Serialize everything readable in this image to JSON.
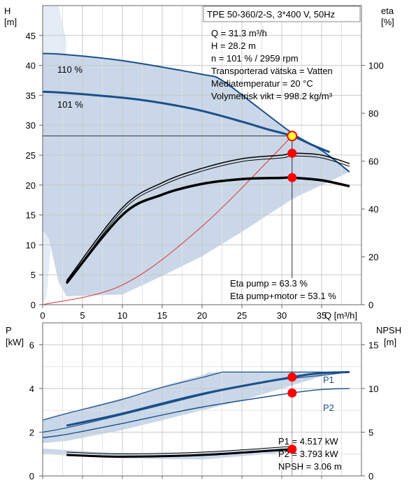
{
  "chart_data": [
    {
      "type": "line",
      "panel": "head_efficiency",
      "title": "TPE 50-360/2-S, 3*400 V, 50Hz",
      "xlabel": "Q [m³/h]",
      "ylabel_left_name": "H",
      "ylabel_left_unit": "[m]",
      "ylabel_right_name": "eta",
      "ylabel_right_unit": "[%]",
      "xlim": [
        0,
        40
      ],
      "ylim_left": [
        0,
        50
      ],
      "ylim_right_eta": [
        0,
        125
      ],
      "xticks": [
        0,
        5,
        10,
        15,
        20,
        25,
        30,
        35
      ],
      "yticks_left": [
        0,
        5,
        10,
        15,
        20,
        25,
        30,
        35,
        40,
        45
      ],
      "yticks_right": [
        0,
        20,
        40,
        60,
        80,
        100
      ],
      "grid": true,
      "colors": {
        "curve": "#1a4f8b",
        "area": "#c9d7e8",
        "area_light": "#e4ecf5",
        "marker": "#ff0000",
        "marker_yellow": "#ffff33",
        "system": "#e03030",
        "grid": "#c8c8c8"
      },
      "info_lines": [
        "Q = 31.3 m³/h",
        "H = 28.2 m",
        "n = 101 % / 2959 rpm",
        "Transporterad vätska = Vatten",
        "Mediatemperatur = 20 °C",
        "Volymetrisk vikt = 998.2 kg/m³"
      ],
      "eta_lines": [
        "Eta pump = 63.3 %",
        "Eta pump+motor = 53.1 %"
      ],
      "curve_labels": [
        "110 %",
        "101 %"
      ],
      "series": [
        {
          "name": "110 %",
          "axis": "left",
          "x": [
            0,
            3,
            10,
            20,
            22.5,
            27,
            31.5,
            35,
            38.5
          ],
          "y": [
            42,
            41.8,
            40.8,
            38.5,
            37.5,
            33,
            28.5,
            25.8,
            22.2
          ]
        },
        {
          "name": "101 %",
          "axis": "left",
          "x": [
            0,
            3,
            10,
            15,
            20,
            25,
            28,
            31.3,
            34,
            36
          ],
          "y": [
            35.6,
            35.4,
            34.6,
            33.7,
            32.4,
            30.6,
            29.4,
            28.2,
            26.6,
            25.5
          ]
        },
        {
          "axis": "left",
          "x": [
            0,
            10,
            20,
            31.3
          ],
          "y": [
            0,
            3.3,
            13.1,
            28.2
          ]
        },
        {
          "axis": "right",
          "x": [
            3,
            10,
            15,
            20,
            25,
            30,
            31.3,
            35,
            38.5
          ],
          "y": [
            10,
            40.5,
            51,
            57,
            61,
            62.5,
            63.3,
            62.5,
            59
          ]
        },
        {
          "axis": "right",
          "x": [
            3,
            10,
            15,
            20,
            25,
            30,
            31.3,
            35,
            38.5
          ],
          "y": [
            9,
            37.5,
            46,
            50.5,
            52.5,
            53,
            53.1,
            52,
            49.5
          ]
        }
      ],
      "operating_point": {
        "x": 31.3,
        "H": 28.2,
        "eta_pump": 63.3,
        "eta_pump_motor": 53.1
      }
    },
    {
      "type": "line",
      "panel": "power_npsh",
      "xlabel": "",
      "ylabel_left_name": "P",
      "ylabel_left_unit": "[kW]",
      "ylabel_right_name": "NPSH",
      "ylabel_right_unit": "[m]",
      "xlim": [
        0,
        40
      ],
      "ylim_left": [
        0,
        7
      ],
      "ylim_right_npsh": [
        0,
        17.5
      ],
      "yticks_left": [
        0,
        2,
        4,
        6
      ],
      "yticks_right": [
        0,
        5,
        10,
        15
      ],
      "grid": true,
      "info_lines": [
        "P1 = 4.517 kW",
        "P2 = 3.793 kW",
        "NPSH = 3.06 m"
      ],
      "legend_labels": [
        "P1",
        "P2"
      ],
      "series": [
        {
          "name": "P1",
          "axis": "left",
          "x": [
            3,
            10,
            20,
            31.3,
            35,
            38.5
          ],
          "y": [
            2.3,
            2.85,
            3.75,
            4.517,
            4.7,
            4.75
          ]
        },
        {
          "name": "P2",
          "axis": "left",
          "x": [
            3,
            10,
            20,
            31.3,
            35,
            38.5
          ],
          "y": [
            1.9,
            2.4,
            3.15,
            3.793,
            3.95,
            4.0
          ]
        },
        {
          "name": "NPSH",
          "axis": "right",
          "x": [
            3,
            10,
            20,
            31.3
          ],
          "y": [
            2.4,
            2.2,
            2.4,
            3.06
          ]
        }
      ],
      "operating_point": {
        "x": 31.3,
        "P1": 4.517,
        "P2": 3.793,
        "NPSH": 3.06
      }
    }
  ]
}
